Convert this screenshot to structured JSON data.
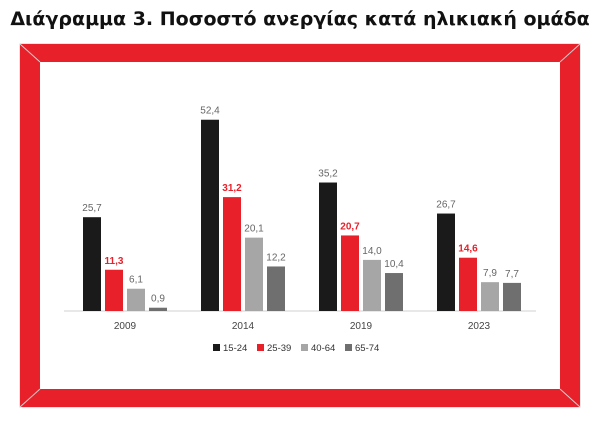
{
  "title": "Διάγραμμα 3. Ποσοστό ανεργίας κατά ηλικιακή ομάδα",
  "chart_data": {
    "type": "bar",
    "title": "",
    "xlabel": "",
    "ylabel": "",
    "categories": [
      "2009",
      "2014",
      "2019",
      "2023"
    ],
    "series": [
      {
        "name": "15-24",
        "color": "#1a1a1a",
        "values": [
          25.7,
          52.4,
          35.2,
          26.7
        ],
        "labels": [
          "25,7",
          "52,4",
          "35,2",
          "26,7"
        ]
      },
      {
        "name": "25-39",
        "color": "#e8202a",
        "values": [
          11.3,
          31.2,
          20.7,
          14.6
        ],
        "labels": [
          "11,3",
          "31,2",
          "20,7",
          "14,6"
        ]
      },
      {
        "name": "40-64",
        "color": "#a6a6a6",
        "values": [
          6.1,
          20.1,
          14.0,
          7.9
        ],
        "labels": [
          "6,1",
          "20,1",
          "14,0",
          "7,9"
        ]
      },
      {
        "name": "65-74",
        "color": "#6f6f6f",
        "values": [
          0.9,
          12.2,
          10.4,
          7.7
        ],
        "labels": [
          "0,9",
          "12,2",
          "10,4",
          "7,7"
        ]
      }
    ],
    "ylim": [
      0,
      60
    ],
    "grid": false,
    "legend": "bottom"
  },
  "frame_color": "#e8202a"
}
